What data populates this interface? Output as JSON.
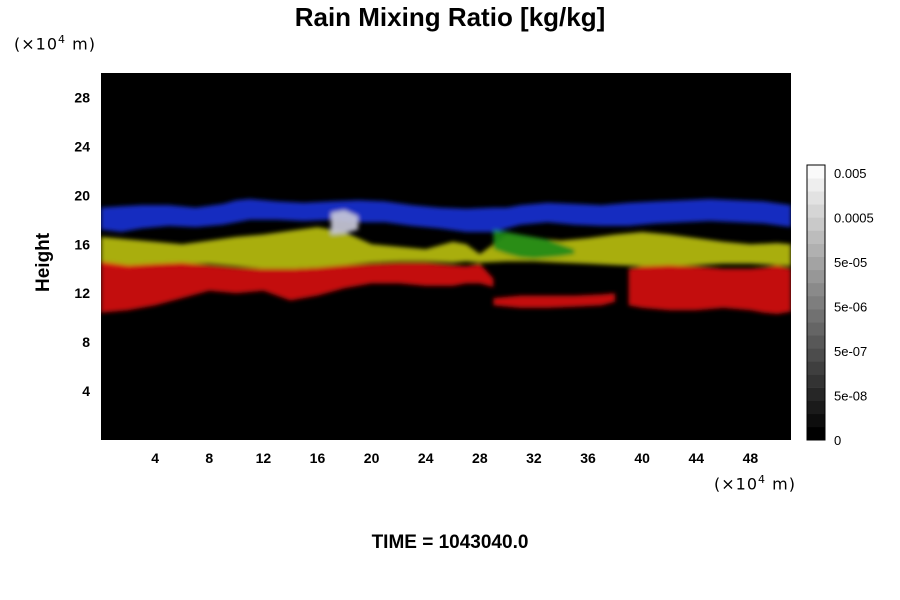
{
  "chart_data": {
    "type": "heatmap",
    "title": "Rain Mixing Ratio [kg/kg]",
    "ylabel": "Height",
    "xlabel": "",
    "x_unit_prefix": "(×10",
    "x_unit_exp": "4",
    "x_unit_suffix": " m)",
    "y_unit_prefix": "(×10",
    "y_unit_exp": "4",
    "y_unit_suffix": " m)",
    "xlim": [
      0,
      51
    ],
    "ylim": [
      0,
      30
    ],
    "x_ticks": [
      4,
      8,
      12,
      16,
      20,
      24,
      28,
      32,
      36,
      40,
      44,
      48
    ],
    "y_ticks": [
      4,
      8,
      12,
      16,
      20,
      24,
      28
    ],
    "background_color": "#000000",
    "layers": [
      {
        "color": "#1a2fd0",
        "x": [
          0,
          1.5,
          3,
          5,
          7,
          9,
          10,
          11,
          13,
          15,
          17,
          19,
          21,
          23,
          25,
          27,
          29,
          30,
          31,
          33,
          35,
          37,
          39,
          41,
          43,
          45,
          47,
          49,
          51
        ],
        "y_top": [
          19.0,
          19.1,
          19.2,
          19.2,
          19.0,
          19.3,
          19.6,
          19.7,
          19.5,
          19.4,
          19.5,
          19.6,
          19.5,
          19.2,
          19.0,
          18.9,
          19.0,
          19.0,
          19.2,
          19.4,
          19.3,
          19.2,
          19.4,
          19.5,
          19.6,
          19.7,
          19.6,
          19.5,
          19.2
        ],
        "y_bottom": [
          17.2,
          17.0,
          17.3,
          17.5,
          17.4,
          17.6,
          17.8,
          18.0,
          18.0,
          17.9,
          18.0,
          17.8,
          17.8,
          17.5,
          17.3,
          17.0,
          17.0,
          17.3,
          17.6,
          17.8,
          17.6,
          17.5,
          17.5,
          17.7,
          17.8,
          17.9,
          17.8,
          17.7,
          17.4
        ]
      },
      {
        "color": "#b7bd12",
        "x": [
          0,
          2,
          4,
          6,
          8,
          10,
          12,
          14,
          16,
          18,
          20,
          22,
          24,
          26,
          27,
          28,
          30,
          32,
          34,
          36,
          38,
          40,
          42,
          44,
          46,
          48,
          50,
          51
        ],
        "y_top": [
          16.6,
          16.4,
          16.2,
          16.0,
          16.3,
          16.6,
          16.8,
          17.1,
          17.4,
          17.0,
          16.0,
          15.8,
          15.6,
          16.2,
          16.0,
          15.2,
          16.8,
          16.5,
          16.3,
          16.5,
          16.8,
          17.0,
          16.8,
          16.5,
          16.2,
          16.0,
          16.1,
          16.0
        ],
        "y_bottom": [
          14.2,
          14.0,
          14.3,
          14.4,
          14.4,
          14.2,
          14.0,
          14.0,
          14.1,
          14.3,
          14.5,
          14.6,
          14.6,
          14.5,
          14.6,
          14.5,
          14.6,
          14.6,
          14.5,
          14.4,
          14.3,
          14.2,
          14.2,
          14.3,
          14.4,
          14.4,
          14.3,
          14.2
        ]
      },
      {
        "color": "#1e8a16",
        "x": [
          29,
          30,
          31,
          32,
          33,
          34,
          35
        ],
        "y_top": [
          17.2,
          17.0,
          16.8,
          16.6,
          16.4,
          16.0,
          15.6
        ],
        "y_bottom": [
          15.6,
          15.2,
          14.9,
          14.8,
          14.9,
          15.0,
          15.2
        ]
      },
      {
        "color": "#d41010",
        "x": [
          0,
          2,
          4,
          6,
          8,
          10,
          12,
          14,
          16,
          18,
          20,
          22,
          24,
          26,
          27,
          28,
          29
        ],
        "y_top": [
          14.6,
          14.3,
          14.4,
          14.5,
          14.3,
          14.1,
          14.0,
          14.0,
          14.1,
          14.3,
          14.4,
          14.5,
          14.5,
          14.3,
          14.2,
          14.4,
          13.2
        ],
        "y_bottom": [
          10.4,
          10.6,
          11.0,
          11.6,
          12.2,
          12.0,
          12.2,
          11.4,
          11.8,
          12.4,
          12.8,
          12.8,
          12.6,
          12.6,
          12.8,
          12.8,
          12.5
        ]
      },
      {
        "color": "#d41010",
        "x": [
          39,
          40,
          42,
          44,
          46,
          48,
          49,
          50,
          51
        ],
        "y_top": [
          14.0,
          14.2,
          14.3,
          14.2,
          14.0,
          14.0,
          14.1,
          14.3,
          14.0
        ],
        "y_bottom": [
          11.0,
          10.8,
          10.6,
          10.6,
          10.8,
          10.6,
          10.4,
          10.3,
          10.5
        ]
      },
      {
        "color": "#d41010",
        "x": [
          29,
          31,
          33,
          35,
          37,
          38
        ],
        "y_top": [
          11.6,
          11.8,
          11.8,
          11.8,
          11.9,
          12.0
        ],
        "y_bottom": [
          11.0,
          10.8,
          10.8,
          10.9,
          11.0,
          11.3
        ]
      },
      {
        "color": "#c8c8d8",
        "x": [
          17,
          18,
          19
        ],
        "y_top": [
          18.6,
          18.8,
          18.3
        ],
        "y_bottom": [
          16.8,
          16.9,
          17.2
        ]
      }
    ],
    "colorbar": {
      "min_label": "0",
      "labels": [
        "5e-08",
        "5e-07",
        "5e-06",
        "5e-05",
        "0.0005",
        "0.005"
      ],
      "colors": [
        "#000000",
        "#0d0d0d",
        "#1a1a1a",
        "#262626",
        "#333333",
        "#3f3f3f",
        "#4c4c4c",
        "#585858",
        "#656565",
        "#717171",
        "#7e7e7e",
        "#8a8a8a",
        "#979797",
        "#a3a3a3",
        "#b0b0b0",
        "#bcbcbc",
        "#c9c9c9",
        "#d5d5d5",
        "#e2e2e2",
        "#eeeeee",
        "#fafafa"
      ]
    }
  },
  "footer": {
    "time_text": "TIME = 1043040.0"
  }
}
